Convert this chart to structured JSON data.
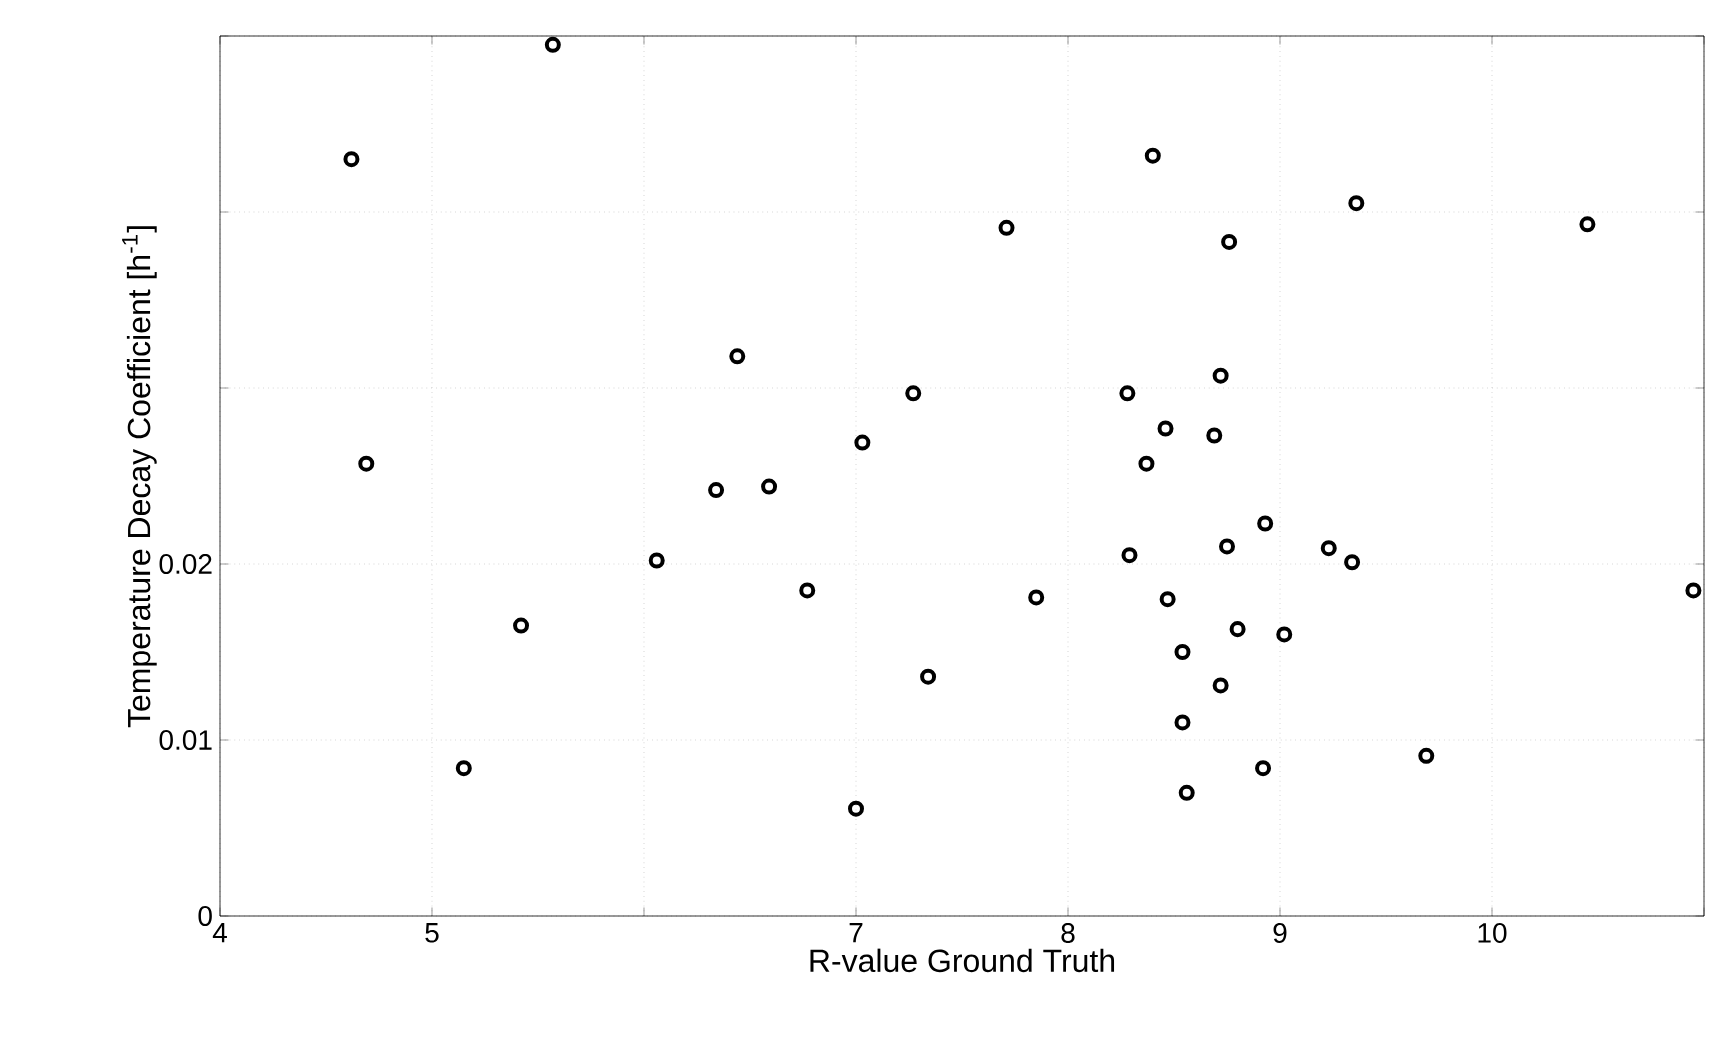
{
  "chart_data": {
    "type": "scatter",
    "xlabel": "R-value Ground Truth",
    "ylabel": "Temperature Decay Coefficient [h$^{-1}$]",
    "xlim": [
      4,
      11
    ],
    "ylim": [
      0,
      0.05
    ],
    "xticks": [
      4,
      5,
      {
        "value": 6,
        "label": null
      },
      7,
      8,
      9,
      10,
      {
        "value": 11,
        "label": null
      }
    ],
    "yticks": [
      0,
      0.01,
      0.02,
      {
        "value": 0.03,
        "label": null
      },
      {
        "value": 0.04,
        "label": null
      },
      {
        "value": 0.05,
        "label": null
      }
    ],
    "grid": true,
    "marker": "circle",
    "series": [
      {
        "color": "#000000",
        "x": [
          5.57,
          4.62,
          4.69,
          5.15,
          5.42,
          6.06,
          6.34,
          6.44,
          6.59,
          6.77,
          7.03,
          7.0,
          7.27,
          7.34,
          7.71,
          7.85,
          8.28,
          8.29,
          8.37,
          8.4,
          8.46,
          8.47,
          8.54,
          8.54,
          8.56,
          8.69,
          8.72,
          8.72,
          8.75,
          8.76,
          8.8,
          8.93,
          8.92,
          9.02,
          9.23,
          9.36,
          9.34,
          9.69,
          10.45,
          10.95
        ],
        "values": [
          0.0495,
          0.043,
          0.0257,
          0.0084,
          0.0165,
          0.0202,
          0.0242,
          0.0318,
          0.0244,
          0.0185,
          0.0269,
          0.0061,
          0.0297,
          0.0136,
          0.0391,
          0.0181,
          0.0297,
          0.0205,
          0.0257,
          0.0432,
          0.0277,
          0.018,
          0.015,
          0.011,
          0.007,
          0.0273,
          0.0307,
          0.0131,
          0.021,
          0.0383,
          0.0163,
          0.0223,
          0.0084,
          0.016,
          0.0209,
          0.0405,
          0.0201,
          0.0091,
          0.0393,
          0.0185
        ]
      }
    ]
  }
}
